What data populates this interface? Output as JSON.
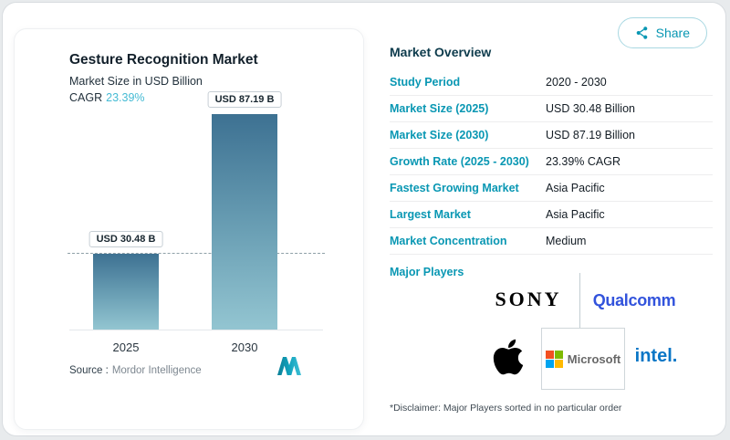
{
  "header": {
    "share_label": "Share"
  },
  "chart": {
    "title": "Gesture Recognition Market",
    "subtitle": "Market Size in USD Billion",
    "cagr_label": "CAGR",
    "cagr_value": "23.39%",
    "source_label": "Source :",
    "source_name": "Mordor Intelligence"
  },
  "chart_data": {
    "type": "bar",
    "categories": [
      "2025",
      "2030"
    ],
    "values": [
      30.48,
      87.19
    ],
    "unit": "USD Billion",
    "bar_labels": [
      "USD 30.48 B",
      "USD 87.19 B"
    ],
    "title": "Gesture Recognition Market",
    "ylabel": "Market Size in USD Billion",
    "ylim": [
      0,
      95
    ],
    "grid": false,
    "legend": false,
    "annotations": [
      {
        "type": "dashed-guide-line",
        "y": 30.48
      }
    ],
    "cagr": "23.39%"
  },
  "overview": {
    "title": "Market Overview",
    "rows": [
      {
        "label": "Study Period",
        "value": "2020 - 2030"
      },
      {
        "label": "Market Size (2025)",
        "value": "USD 30.48 Billion"
      },
      {
        "label": "Market Size (2030)",
        "value": "USD 87.19 Billion"
      },
      {
        "label": "Growth Rate (2025 - 2030)",
        "value": "23.39% CAGR"
      },
      {
        "label": "Fastest Growing Market",
        "value": "Asia Pacific"
      },
      {
        "label": "Largest Market",
        "value": "Asia Pacific"
      },
      {
        "label": "Market Concentration",
        "value": "Medium"
      }
    ],
    "major_players_label": "Major Players",
    "players": [
      {
        "name": "Sony",
        "text": "SONY"
      },
      {
        "name": "Qualcomm",
        "text": "Qualcomm"
      },
      {
        "name": "Apple",
        "icon": "apple-logo"
      },
      {
        "name": "Microsoft",
        "text": "Microsoft"
      },
      {
        "name": "Intel",
        "text": "intel."
      }
    ],
    "disclaimer": "*Disclaimer: Major Players sorted in no particular order"
  },
  "colors": {
    "accent": "#0997B3",
    "heading": "#0D3B4C",
    "cagr_highlight": "#45BBD4",
    "bar_gradient_top": "#3D7192",
    "bar_gradient_bottom": "#93C5D1",
    "qualcomm_blue": "#3253DC",
    "intel_blue": "#0A76C6",
    "microsoft_squares": [
      "#F25022",
      "#7FBA00",
      "#00A4EF",
      "#FFB900"
    ]
  }
}
